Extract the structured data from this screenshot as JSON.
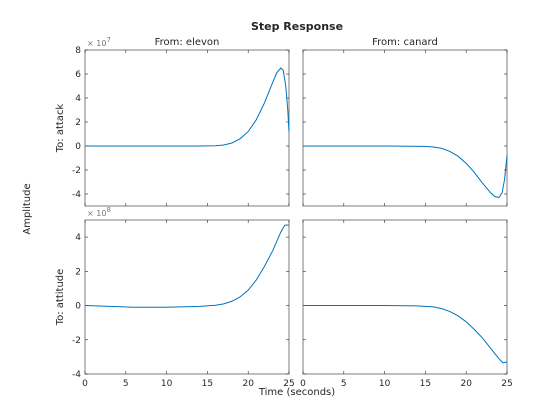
{
  "figure": {
    "title": "Step Response",
    "xlabel": "Time (seconds)",
    "ylabel": "Amplitude",
    "line_color": "#0072bd"
  },
  "chart_data": [
    {
      "type": "line",
      "column_title": "From: elevon",
      "row_label": "To: attack",
      "multiplier": "× 10",
      "exponent": "7",
      "xlim": [
        0,
        25
      ],
      "ylim": [
        -5,
        8
      ],
      "x_ticks": [
        0,
        5,
        10,
        15,
        20,
        25
      ],
      "y_ticks": [
        -4,
        -2,
        0,
        2,
        4,
        6,
        8
      ],
      "grid": false,
      "x": [
        0,
        5,
        10,
        14,
        16,
        17,
        18,
        19,
        20,
        21,
        22,
        23,
        23.5,
        24,
        24.3,
        24.6,
        24.85,
        25
      ],
      "y": [
        0,
        0,
        0,
        0,
        0.02,
        0.08,
        0.25,
        0.6,
        1.2,
        2.2,
        3.6,
        5.3,
        6.1,
        6.5,
        6.3,
        5.0,
        3.0,
        1.2
      ]
    },
    {
      "type": "line",
      "column_title": "From: canard",
      "row_label": "To: attack",
      "xlim": [
        0,
        25
      ],
      "ylim": [
        -5,
        8
      ],
      "x_ticks": [
        0,
        5,
        10,
        15,
        20,
        25
      ],
      "y_ticks": [
        -4,
        -2,
        0,
        2,
        4,
        6,
        8
      ],
      "grid": false,
      "x": [
        0,
        5,
        10,
        15,
        16,
        17,
        18,
        19,
        20,
        21,
        22,
        23,
        23.5,
        24,
        24.4,
        24.7,
        25
      ],
      "y": [
        0,
        0,
        0,
        -0.03,
        -0.08,
        -0.2,
        -0.45,
        -0.85,
        -1.45,
        -2.2,
        -3.1,
        -3.9,
        -4.2,
        -4.3,
        -3.9,
        -2.8,
        -0.8
      ]
    },
    {
      "type": "line",
      "column_title": "From: elevon",
      "row_label": "To: attitude",
      "multiplier": "× 10",
      "exponent": "8",
      "xlim": [
        0,
        25
      ],
      "ylim": [
        -4,
        5
      ],
      "x_ticks": [
        0,
        5,
        10,
        15,
        20,
        25
      ],
      "y_ticks": [
        -4,
        -2,
        0,
        2,
        4
      ],
      "grid": false,
      "x": [
        0,
        3,
        6,
        10,
        14,
        16,
        17,
        18,
        19,
        20,
        21,
        22,
        23,
        24,
        24.5,
        25
      ],
      "y": [
        0,
        -0.05,
        -0.1,
        -0.1,
        -0.05,
        0.02,
        0.1,
        0.25,
        0.5,
        0.9,
        1.5,
        2.3,
        3.2,
        4.3,
        4.7,
        4.7
      ]
    },
    {
      "type": "line",
      "column_title": "From: canard",
      "row_label": "To: attitude",
      "xlim": [
        0,
        25
      ],
      "ylim": [
        -4,
        5
      ],
      "x_ticks": [
        0,
        5,
        10,
        15,
        20,
        25
      ],
      "y_ticks": [
        -4,
        -2,
        0,
        2,
        4
      ],
      "grid": false,
      "x": [
        0,
        5,
        10,
        14,
        16,
        17,
        18,
        19,
        20,
        21,
        22,
        23,
        24,
        24.5,
        25
      ],
      "y": [
        0,
        0,
        0,
        -0.02,
        -0.08,
        -0.18,
        -0.35,
        -0.6,
        -0.95,
        -1.4,
        -1.9,
        -2.5,
        -3.1,
        -3.35,
        -3.3
      ]
    }
  ]
}
